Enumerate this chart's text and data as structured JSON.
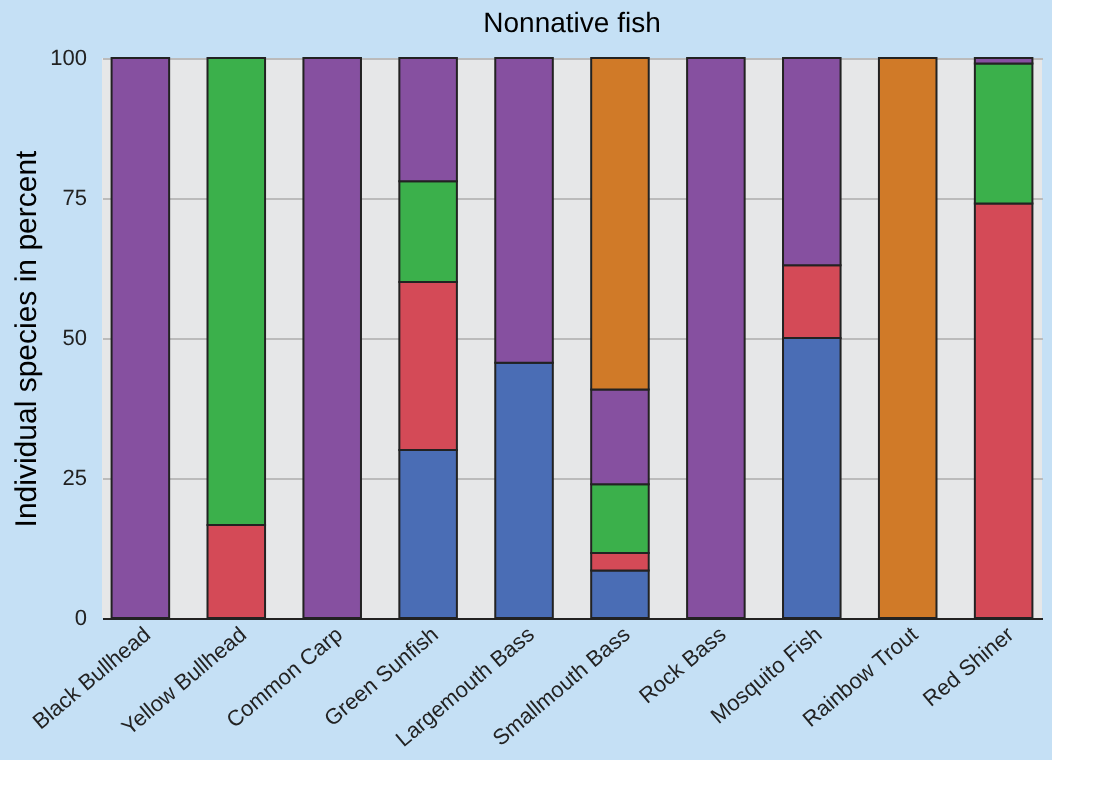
{
  "chart_data": {
    "type": "bar",
    "title": "Nonnative fish",
    "ylabel": "Individual species in percent",
    "stacked": true,
    "categories": [
      "Black Bullhead",
      "Yellow Bullhead",
      "Common Carp",
      "Green Sunfish",
      "Largemouth Bass",
      "Smallmouth Bass",
      "Rock Bass",
      "Mosquito Fish",
      "Rainbow Trout",
      "Red Shiner"
    ],
    "series": [
      {
        "color": "#4a6db5",
        "values": [
          0,
          0,
          0,
          30,
          45.6,
          8.5,
          0,
          50,
          0,
          0
        ]
      },
      {
        "color": "#d44a57",
        "values": [
          0,
          16.6,
          0,
          30,
          0,
          3.1,
          0,
          13,
          0,
          74
        ]
      },
      {
        "color": "#3bb04b",
        "values": [
          0,
          83.4,
          0,
          18,
          0,
          12.3,
          0,
          0,
          0,
          25
        ]
      },
      {
        "color": "#8650a0",
        "values": [
          100,
          0,
          100,
          22,
          54.4,
          16.9,
          100,
          37,
          0,
          1
        ]
      },
      {
        "color": "#d07a28",
        "values": [
          0,
          0,
          0,
          0,
          0,
          59.2,
          0,
          0,
          100,
          0
        ]
      }
    ],
    "ylim": [
      0,
      100
    ],
    "yticks": [
      0,
      25,
      50,
      75,
      100
    ],
    "grid": "y",
    "legend": false
  }
}
